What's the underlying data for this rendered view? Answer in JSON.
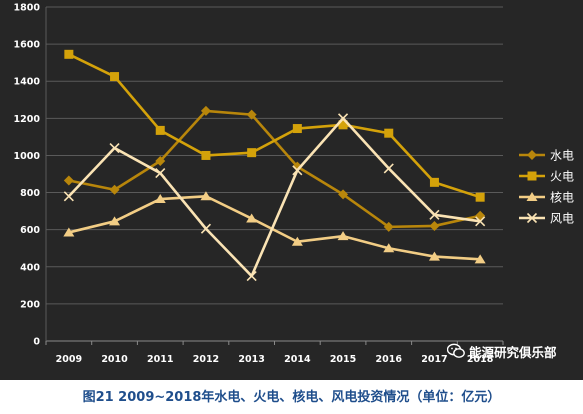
{
  "chart_data": {
    "type": "line",
    "title": "",
    "xlabel": "",
    "ylabel": "",
    "categories": [
      "2009",
      "2010",
      "2011",
      "2012",
      "2013",
      "2014",
      "2015",
      "2016",
      "2017",
      "2018"
    ],
    "ylim": [
      0,
      1800
    ],
    "yticks": [
      0,
      200,
      400,
      600,
      800,
      1000,
      1200,
      1400,
      1600,
      1800
    ],
    "grid": true,
    "legend_position": "right",
    "series": [
      {
        "name": "水电",
        "marker": "diamond",
        "color": "#b8860b",
        "values": [
          865,
          815,
          970,
          1240,
          1220,
          940,
          790,
          615,
          620,
          675
        ]
      },
      {
        "name": "火电",
        "marker": "square",
        "color": "#d4a20a",
        "values": [
          1545,
          1425,
          1135,
          1000,
          1015,
          1145,
          1165,
          1120,
          855,
          775
        ]
      },
      {
        "name": "核电",
        "marker": "triangle",
        "color": "#f2cd85",
        "values": [
          585,
          645,
          765,
          780,
          660,
          535,
          565,
          500,
          455,
          440
        ]
      },
      {
        "name": "风电",
        "marker": "x",
        "color": "#fae3b4",
        "values": [
          780,
          1040,
          905,
          605,
          350,
          920,
          1200,
          930,
          680,
          645
        ]
      }
    ]
  },
  "watermark": {
    "text": "能源研究俱乐部",
    "icon": "wechat-icon"
  },
  "caption": "图21    2009~2018年水电、火电、核电、风电投资情况（单位：亿元）"
}
